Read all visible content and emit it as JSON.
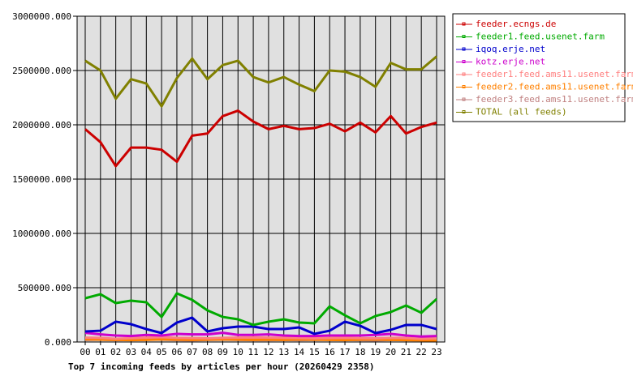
{
  "chart_data": {
    "type": "line",
    "title": "Top 7 incoming feeds by articles per hour (20260429 2358)",
    "xlabel": "",
    "ylabel": "",
    "ylim": [
      0,
      3000000
    ],
    "yticks": [
      "0.000",
      "500000.000",
      "1000000.000",
      "1500000.000",
      "2000000.000",
      "2500000.000",
      "3000000.000"
    ],
    "categories": [
      "00",
      "01",
      "02",
      "03",
      "04",
      "05",
      "06",
      "07",
      "08",
      "09",
      "10",
      "11",
      "12",
      "13",
      "14",
      "15",
      "16",
      "17",
      "18",
      "19",
      "20",
      "21",
      "22",
      "23"
    ],
    "grid": true,
    "legend_position": "right",
    "background": "#e0e0e0",
    "series": [
      {
        "name": "feeder.ecngs.de",
        "color": "#cc0000",
        "values": [
          1960000,
          1840000,
          1620000,
          1790000,
          1790000,
          1770000,
          1660000,
          1900000,
          1920000,
          2080000,
          2130000,
          2030000,
          1960000,
          1990000,
          1960000,
          1970000,
          2010000,
          1940000,
          2020000,
          1930000,
          2080000,
          1920000,
          1980000,
          2020000
        ]
      },
      {
        "name": "feeder1.feed.usenet.farm",
        "color": "#00aa00",
        "values": [
          403000,
          440000,
          358000,
          381000,
          366000,
          231000,
          448000,
          388000,
          291000,
          231000,
          209000,
          157000,
          187000,
          209000,
          179000,
          172000,
          328000,
          246000,
          172000,
          239000,
          276000,
          336000,
          269000,
          396000
        ]
      },
      {
        "name": "iqoq.erje.net",
        "color": "#0000cc",
        "values": [
          97000,
          104000,
          187000,
          164000,
          119000,
          82000,
          179000,
          224000,
          97000,
          127000,
          142000,
          142000,
          119000,
          119000,
          134000,
          75000,
          104000,
          187000,
          149000,
          82000,
          112000,
          157000,
          157000,
          119000
        ]
      },
      {
        "name": "kotz.erje.net",
        "color": "#cc00cc",
        "values": [
          85000,
          70000,
          60000,
          55000,
          65000,
          60000,
          75000,
          70000,
          70000,
          85000,
          65000,
          65000,
          70000,
          60000,
          55000,
          55000,
          60000,
          60000,
          60000,
          65000,
          75000,
          60000,
          50000,
          55000
        ]
      },
      {
        "name": "feeder1.feed.ams11.usenet.farm",
        "color": "#ff8080",
        "values": [
          40000,
          38000,
          30000,
          35000,
          40000,
          45000,
          38000,
          36000,
          34000,
          38000,
          40000,
          42000,
          40000,
          38000,
          36000,
          34000,
          36000,
          38000,
          35000,
          34000,
          38000,
          36000,
          30000,
          34000
        ]
      },
      {
        "name": "feeder2.feed.ams11.usenet.farm",
        "color": "#ff8000",
        "values": [
          25000,
          22000,
          20000,
          18000,
          20000,
          24000,
          22000,
          20000,
          22000,
          24000,
          22000,
          20000,
          22000,
          20000,
          24000,
          22000,
          20000,
          18000,
          22000,
          24000,
          20000,
          18000,
          16000,
          10000
        ]
      },
      {
        "name": "feeder3.feed.ams11.usenet.farm",
        "color": "#c08080",
        "values": [
          20000,
          22000,
          18000,
          20000,
          24000,
          22000,
          18000,
          16000,
          20000,
          22000,
          20000,
          18000,
          18000,
          20000,
          18000,
          20000,
          22000,
          20000,
          18000,
          16000,
          20000,
          22000,
          30000,
          35000
        ]
      },
      {
        "name": "TOTAL (all feeds)",
        "color": "#808000",
        "values": [
          2590000,
          2500000,
          2240000,
          2420000,
          2380000,
          2170000,
          2430000,
          2610000,
          2420000,
          2550000,
          2590000,
          2440000,
          2390000,
          2440000,
          2370000,
          2310000,
          2500000,
          2490000,
          2440000,
          2350000,
          2570000,
          2510000,
          2510000,
          2630000
        ]
      }
    ]
  }
}
